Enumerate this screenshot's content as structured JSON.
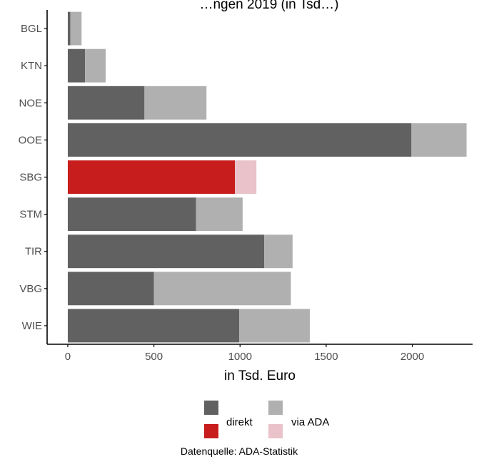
{
  "chart_data": {
    "type": "bar",
    "orientation": "horizontal",
    "stacked": true,
    "title": "…ngen 2019 (in Tsd…)",
    "xlabel": "in Tsd. Euro",
    "ylabel": "",
    "xlim": [
      -120,
      2350
    ],
    "xticks": [
      0,
      500,
      1000,
      1500,
      2000
    ],
    "xtick_labels": [
      "0",
      "500",
      "1000",
      "1500",
      "2000"
    ],
    "categories": [
      "BGL",
      "KTN",
      "NOE",
      "OOE",
      "SBG",
      "STM",
      "TIR",
      "VBG",
      "WIE"
    ],
    "highlight_category": "SBG",
    "series": [
      {
        "name": "direkt",
        "values": [
          15,
          100,
          445,
          1995,
          970,
          745,
          1140,
          500,
          995
        ]
      },
      {
        "name": "via ADA",
        "values": [
          65,
          120,
          360,
          320,
          125,
          270,
          165,
          795,
          410
        ]
      }
    ],
    "colors": {
      "direkt": "#616161",
      "via_ada": "#b0b0b0",
      "direkt_highlight": "#c81d1d",
      "via_ada_highlight": "#eac2ca",
      "axis": "#000000",
      "tick_label": "#4d4d4d"
    },
    "grid": false,
    "legend": {
      "position": "bottom",
      "entries": [
        "direkt",
        "via ADA"
      ]
    },
    "caption": "Datenquelle: ADA-Statistik"
  }
}
